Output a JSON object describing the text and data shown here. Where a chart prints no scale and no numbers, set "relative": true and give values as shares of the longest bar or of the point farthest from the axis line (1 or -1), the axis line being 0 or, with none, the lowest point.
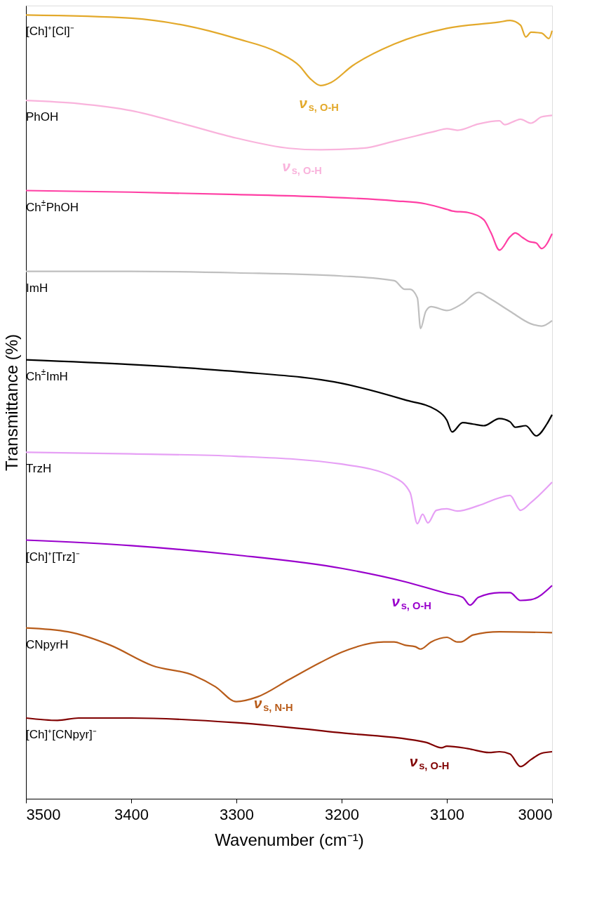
{
  "chart_data": {
    "type": "line",
    "relative": true,
    "xlabel": "Wavenumber (cm⁻¹)",
    "ylabel": "Transmittance (%)",
    "xlim": [
      3500,
      3000
    ],
    "xticks": [
      3500,
      3400,
      3300,
      3200,
      3100,
      3000
    ],
    "tick_labels": "x",
    "grid": false,
    "marker": "none",
    "line_style": "solid",
    "series": [
      {
        "name": "[Ch]⁺[Cl]⁻",
        "color": "#e3a92b",
        "x": [
          3500,
          3400,
          3350,
          3300,
          3260,
          3240,
          3230,
          3220,
          3210,
          3190,
          3150,
          3100,
          3050,
          3040,
          3030,
          3025,
          3020,
          3010,
          3003,
          3000
        ],
        "values": [
          1.0,
          0.996,
          0.987,
          0.97,
          0.952,
          0.935,
          0.919,
          0.91,
          0.914,
          0.935,
          0.963,
          0.983,
          0.991,
          0.993,
          0.987,
          0.972,
          0.978,
          0.977,
          0.97,
          0.98
        ]
      },
      {
        "name": "PhOH",
        "color": "#f9b3dc",
        "x": [
          3500,
          3450,
          3400,
          3350,
          3300,
          3250,
          3220,
          3180,
          3150,
          3110,
          3100,
          3090,
          3070,
          3050,
          3045,
          3035,
          3030,
          3020,
          3010,
          3000
        ],
        "values": [
          0.891,
          0.887,
          0.878,
          0.861,
          0.843,
          0.83,
          0.828,
          0.83,
          0.839,
          0.852,
          0.855,
          0.853,
          0.861,
          0.865,
          0.86,
          0.865,
          0.867,
          0.862,
          0.87,
          0.872
        ]
      },
      {
        "name": "Ch$^{±}$PhOH",
        "color": "#ff3fa4",
        "x": [
          3500,
          3400,
          3300,
          3220,
          3150,
          3120,
          3100,
          3095,
          3080,
          3065,
          3058,
          3050,
          3040,
          3035,
          3028,
          3022,
          3015,
          3010,
          3000
        ],
        "values": [
          0.776,
          0.774,
          0.771,
          0.768,
          0.763,
          0.759,
          0.752,
          0.75,
          0.748,
          0.739,
          0.722,
          0.7,
          0.717,
          0.722,
          0.716,
          0.711,
          0.709,
          0.702,
          0.721
        ]
      },
      {
        "name": "ImH",
        "color": "#bfbfbf",
        "x": [
          3500,
          3400,
          3300,
          3200,
          3150,
          3140,
          3135,
          3128,
          3125,
          3120,
          3115,
          3100,
          3085,
          3070,
          3060,
          3040,
          3020,
          3010,
          3000
        ],
        "values": [
          0.673,
          0.673,
          0.671,
          0.667,
          0.661,
          0.65,
          0.65,
          0.639,
          0.6,
          0.622,
          0.628,
          0.623,
          0.632,
          0.646,
          0.639,
          0.622,
          0.606,
          0.603,
          0.61
        ]
      },
      {
        "name": "Ch$^{±}$ImH",
        "color": "#000000",
        "x": [
          3500,
          3400,
          3300,
          3200,
          3140,
          3110,
          3100,
          3095,
          3085,
          3075,
          3065,
          3050,
          3040,
          3035,
          3025,
          3015,
          3005,
          3000
        ],
        "values": [
          0.56,
          0.554,
          0.545,
          0.53,
          0.509,
          0.496,
          0.483,
          0.468,
          0.48,
          0.478,
          0.476,
          0.485,
          0.481,
          0.474,
          0.476,
          0.463,
          0.478,
          0.49
        ]
      },
      {
        "name": "TrzH",
        "color": "#e6a0f5",
        "x": [
          3500,
          3400,
          3300,
          3200,
          3150,
          3135,
          3128,
          3123,
          3118,
          3110,
          3100,
          3090,
          3070,
          3050,
          3040,
          3030,
          3020,
          3000
        ],
        "values": [
          0.442,
          0.44,
          0.437,
          0.427,
          0.41,
          0.391,
          0.351,
          0.363,
          0.352,
          0.368,
          0.37,
          0.367,
          0.374,
          0.384,
          0.387,
          0.368,
          0.378,
          0.404
        ]
      },
      {
        "name": "[Ch]⁺[Trz]⁻",
        "color": "#9900cc",
        "x": [
          3500,
          3400,
          3300,
          3200,
          3140,
          3100,
          3085,
          3078,
          3070,
          3050,
          3040,
          3030,
          3020,
          3000
        ],
        "values": [
          0.33,
          0.323,
          0.311,
          0.294,
          0.277,
          0.262,
          0.257,
          0.247,
          0.257,
          0.263,
          0.263,
          0.253,
          0.254,
          0.272
        ]
      },
      {
        "name": "CNpyrH",
        "color": "#b85c1a",
        "x": [
          3500,
          3460,
          3420,
          3380,
          3340,
          3320,
          3300,
          3280,
          3250,
          3220,
          3200,
          3160,
          3150,
          3140,
          3130,
          3125,
          3115,
          3100,
          3090,
          3087,
          3075,
          3050,
          3000
        ],
        "values": [
          0.218,
          0.213,
          0.196,
          0.17,
          0.157,
          0.143,
          0.124,
          0.13,
          0.152,
          0.174,
          0.187,
          0.2,
          0.2,
          0.196,
          0.194,
          0.191,
          0.2,
          0.206,
          0.2,
          0.2,
          0.209,
          0.213,
          0.212
        ]
      },
      {
        "name": "[Ch]⁺[CNpyr]⁻",
        "color": "#800000",
        "x": [
          3500,
          3470,
          3450,
          3400,
          3300,
          3200,
          3120,
          3105,
          3100,
          3080,
          3060,
          3050,
          3040,
          3030,
          3020,
          3010,
          3000
        ],
        "values": [
          0.103,
          0.1,
          0.103,
          0.103,
          0.097,
          0.084,
          0.072,
          0.065,
          0.067,
          0.064,
          0.059,
          0.06,
          0.057,
          0.041,
          0.05,
          0.058,
          0.06
        ]
      }
    ],
    "annotations": [
      {
        "text": "ν$_{s, O-H}$",
        "x": 3219,
        "y": 0.91
      },
      {
        "text": "ν$_{s, O-H}$",
        "x": 3235,
        "y": 0.829
      },
      {
        "text": "ν$_{s, O-H}$",
        "x": 3131,
        "y": 0.274
      },
      {
        "text": "ν$_{s, N-H}$",
        "x": 3262,
        "y": 0.144
      },
      {
        "text": "ν$_{s, O-H}$",
        "x": 3114,
        "y": 0.07
      }
    ]
  }
}
